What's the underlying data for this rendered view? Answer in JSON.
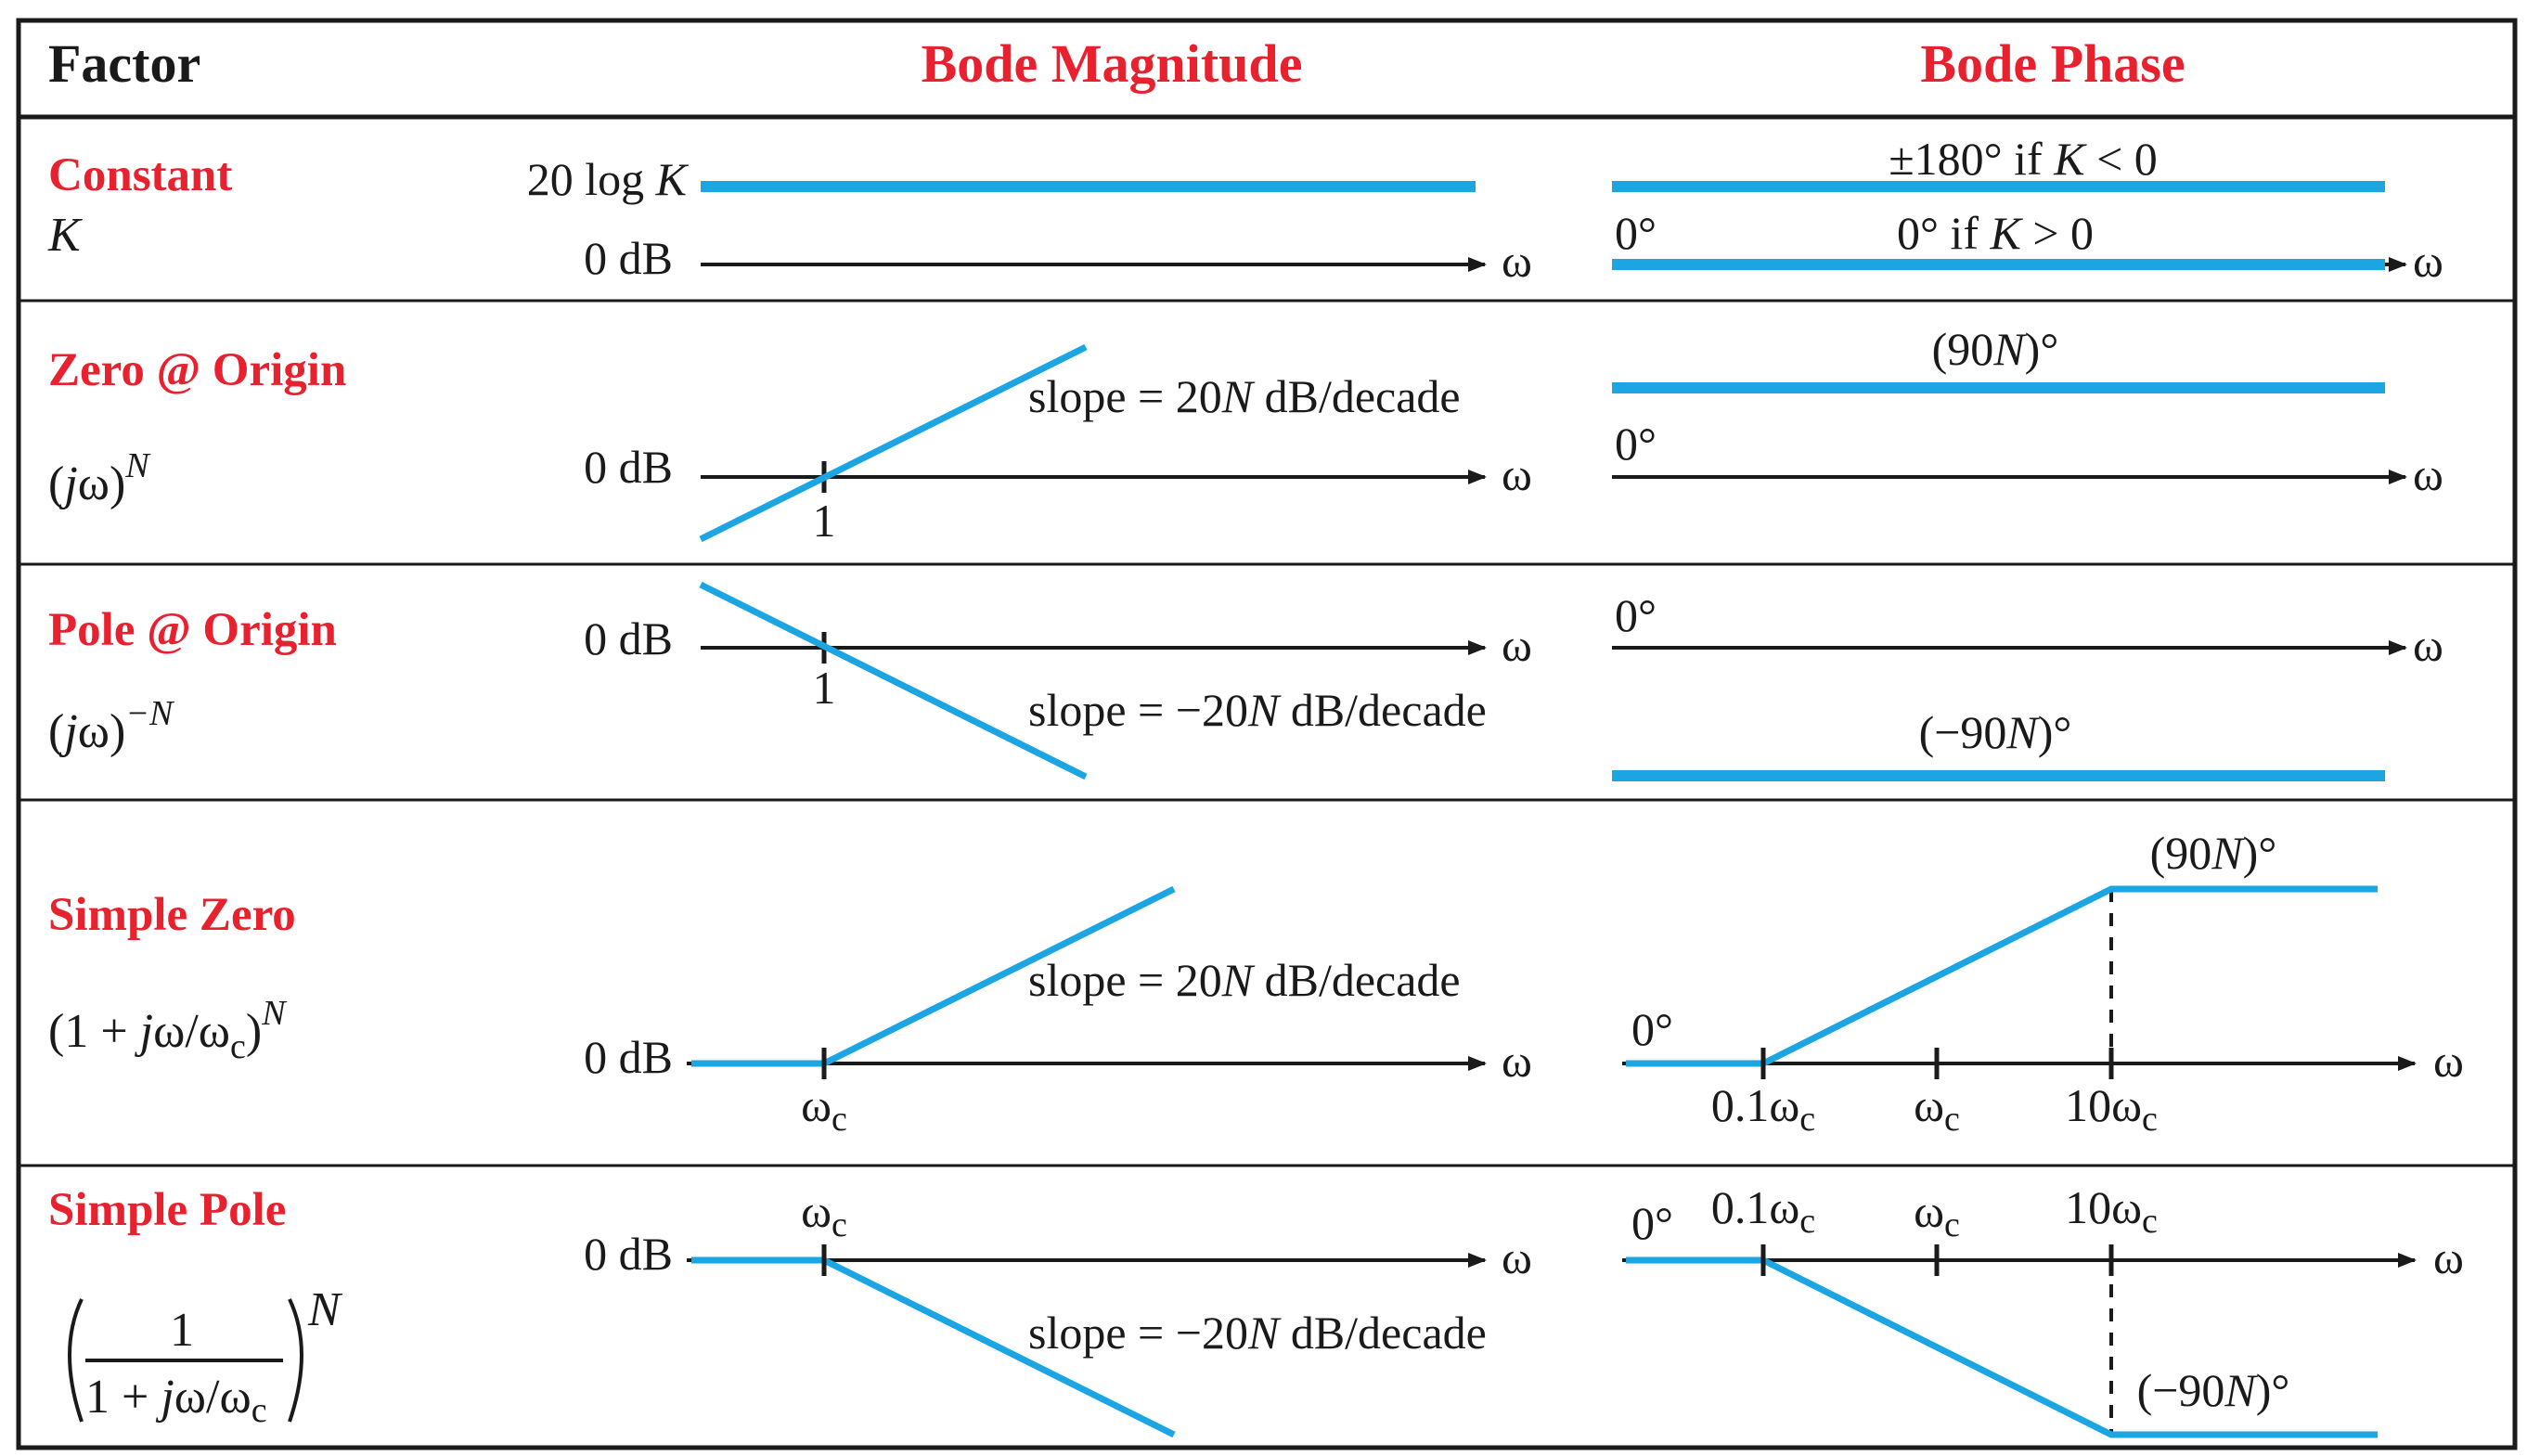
{
  "headers": {
    "factor": "Factor",
    "magnitude": "Bode Magnitude",
    "phase": "Bode Phase"
  },
  "colors": {
    "accent_red": "#e8212f",
    "curve_blue": "#1ba5e3",
    "ink": "#1a1a1a"
  },
  "axis_symbol": "ω",
  "rows": [
    {
      "name": "Constant",
      "expr": {
        "main": "K"
      },
      "magnitude": {
        "level_label": {
          "pre": "20 log ",
          "it": "K"
        },
        "zero_label": "0 dB"
      },
      "phase": {
        "upper_label": {
          "a": "±180° if ",
          "b": "K",
          "c": " < 0"
        },
        "lower_label": {
          "a": "0° if ",
          "b": "K",
          "c": " > 0"
        },
        "zero_label": "0°"
      }
    },
    {
      "name": "Zero @ Origin",
      "expr": {
        "pre": "(",
        "j": "j",
        "mid": "ω)",
        "sup": "N"
      },
      "magnitude": {
        "zero_label": "0 dB",
        "tick_label": "1",
        "slope": {
          "pre": "slope = 20",
          "n": "N",
          "post": " dB/decade"
        }
      },
      "phase": {
        "zero_label": "0°",
        "level": {
          "pre": "(90",
          "n": "N",
          "post": ")°"
        }
      }
    },
    {
      "name": "Pole @ Origin",
      "expr": {
        "pre": "(",
        "j": "j",
        "mid": "ω)",
        "sup": "−N"
      },
      "magnitude": {
        "zero_label": "0 dB",
        "tick_label": "1",
        "slope": {
          "pre": "slope = −20",
          "n": "N",
          "post": " dB/decade"
        }
      },
      "phase": {
        "zero_label": "0°",
        "level": {
          "pre": "(−90",
          "n": "N",
          "post": ")°"
        }
      }
    },
    {
      "name": "Simple Zero",
      "expr": {
        "pre": "(1 + ",
        "j": "j",
        "mid": "ω/ω",
        "sub": "c",
        "close": ")",
        "sup": "N"
      },
      "magnitude": {
        "zero_label": "0 dB",
        "corner": {
          "sym": "ω",
          "sub": "c"
        },
        "slope": {
          "pre": "slope = 20",
          "n": "N",
          "post": " dB/decade"
        }
      },
      "phase": {
        "zero_label": "0°",
        "ticks": [
          {
            "pre": "0.1ω",
            "sub": "c"
          },
          {
            "pre": "ω",
            "sub": "c"
          },
          {
            "pre": "10ω",
            "sub": "c"
          }
        ],
        "level": {
          "pre": "(90",
          "n": "N",
          "post": ")°"
        }
      }
    },
    {
      "name": "Simple Pole",
      "expr": {
        "num": "1",
        "den_pre": "1 + ",
        "den_j": "j",
        "den_mid": "ω/ω",
        "den_sub": "c",
        "sup": "N"
      },
      "magnitude": {
        "zero_label": "0 dB",
        "corner": {
          "sym": "ω",
          "sub": "c"
        },
        "slope": {
          "pre": "slope = −20",
          "n": "N",
          "post": " dB/decade"
        }
      },
      "phase": {
        "zero_label": "0°",
        "ticks": [
          {
            "pre": "0.1ω",
            "sub": "c"
          },
          {
            "pre": "ω",
            "sub": "c"
          },
          {
            "pre": "10ω",
            "sub": "c"
          }
        ],
        "level": {
          "pre": "(−90",
          "n": "N",
          "post": ")°"
        }
      }
    }
  ]
}
